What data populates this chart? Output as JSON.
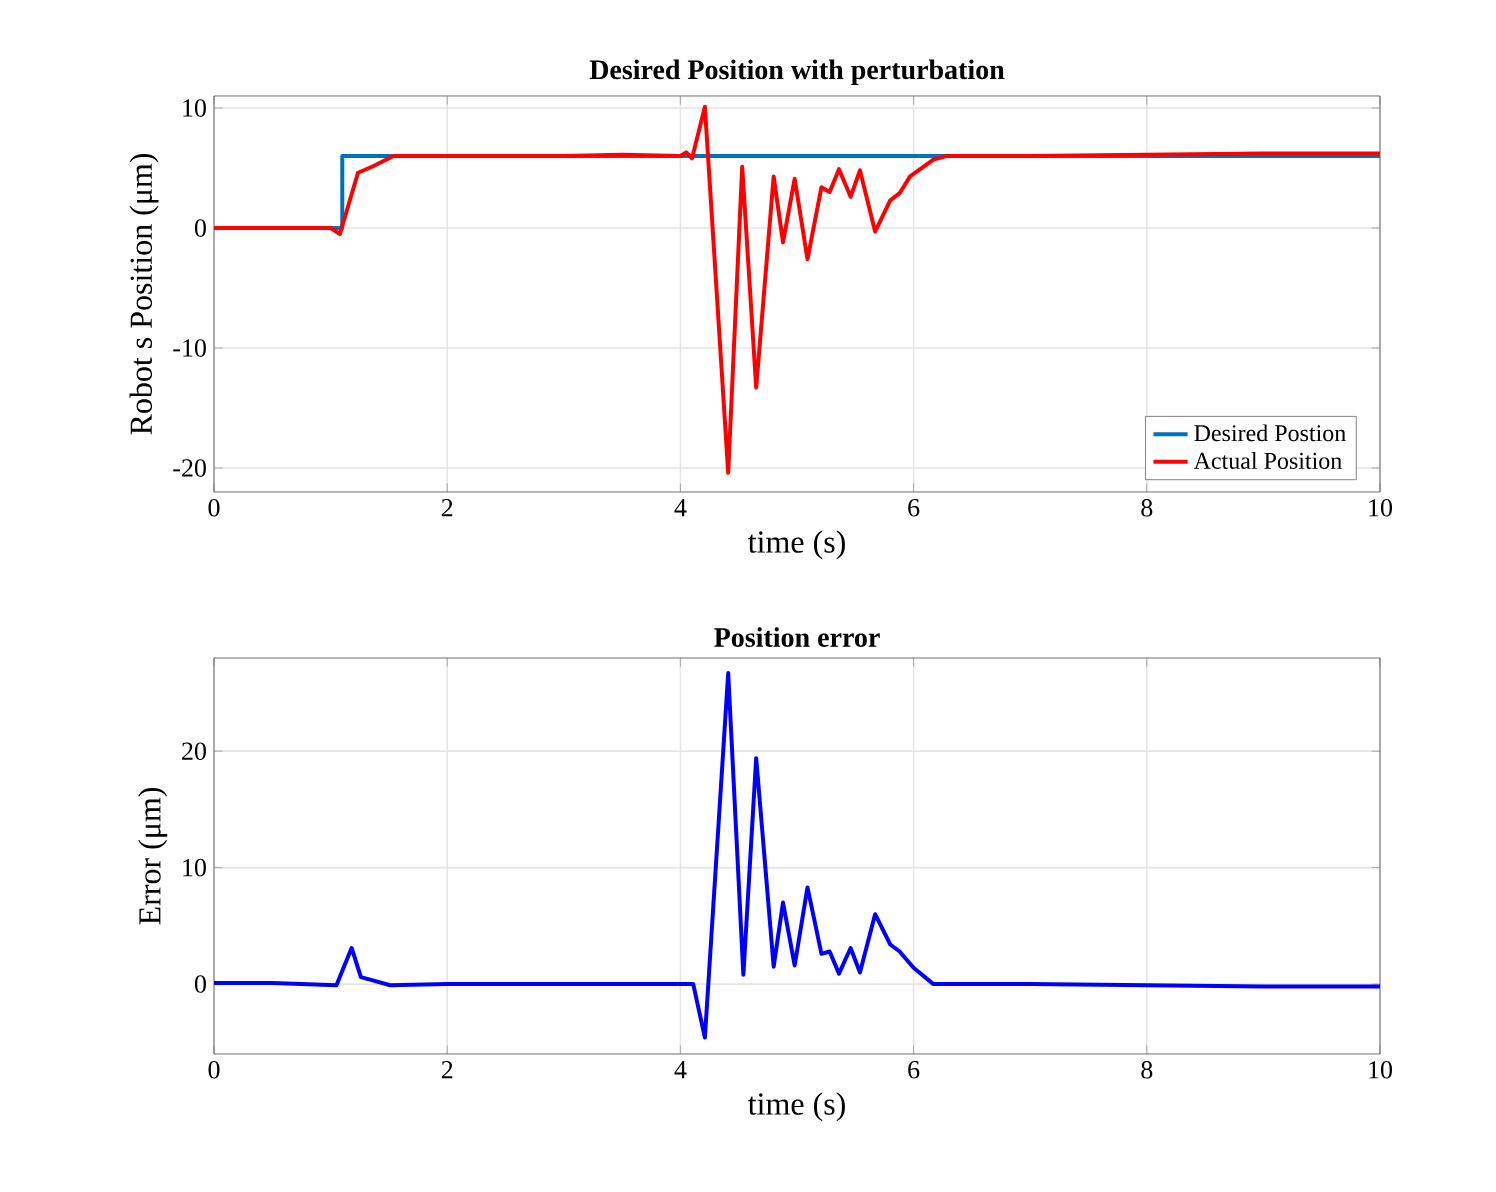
{
  "chart_data": [
    {
      "type": "line",
      "title": "Desired Position with perturbation",
      "xlabel": "time (s)",
      "ylabel": "Robot s Position (μm)",
      "xlim": [
        0,
        10
      ],
      "ylim": [
        -22,
        11
      ],
      "xticks": [
        0,
        2,
        4,
        6,
        8,
        10
      ],
      "yticks": [
        -20,
        -10,
        0,
        10
      ],
      "grid": true,
      "legend": "bottom right",
      "series": [
        {
          "name": "Desired Postion",
          "color": "#0072bd",
          "x": [
            0,
            1.1,
            1.1,
            10
          ],
          "values": [
            0,
            0,
            6,
            6
          ]
        },
        {
          "name": "Actual Position",
          "color": "#ff0000",
          "x": [
            0,
            0.5,
            1.0,
            1.08,
            1.235,
            1.355,
            1.54,
            2.0,
            3.0,
            3.5,
            4.0,
            4.05,
            4.1,
            4.21,
            4.41,
            4.53,
            4.65,
            4.8,
            4.88,
            4.98,
            5.09,
            5.21,
            5.28,
            5.36,
            5.46,
            5.54,
            5.67,
            5.8,
            5.88,
            5.97,
            6.17,
            6.28,
            7.0,
            8.0,
            9.0,
            10.0
          ],
          "values": [
            0,
            0,
            0,
            -0.5,
            4.6,
            5.1,
            6.0,
            6.0,
            6.0,
            6.1,
            6.0,
            6.3,
            5.8,
            10.1,
            -20.4,
            5.1,
            -13.3,
            4.3,
            -1.2,
            4.1,
            -2.6,
            3.4,
            3.0,
            4.9,
            2.6,
            4.8,
            -0.3,
            2.3,
            2.9,
            4.3,
            5.7,
            6.0,
            6.0,
            6.1,
            6.2,
            6.2
          ]
        }
      ]
    },
    {
      "type": "line",
      "title": "Position error",
      "xlabel": "time (s)",
      "ylabel": "Error (μm)",
      "xlim": [
        0,
        10
      ],
      "ylim": [
        -6,
        28
      ],
      "xticks": [
        0,
        2,
        4,
        6,
        8,
        10
      ],
      "yticks": [
        0,
        10,
        20
      ],
      "grid": true,
      "series": [
        {
          "color": "#0000ff",
          "x": [
            0,
            0.5,
            1.05,
            1.18,
            1.26,
            1.37,
            1.51,
            2.0,
            3.0,
            4.0,
            4.11,
            4.21,
            4.41,
            4.54,
            4.65,
            4.8,
            4.88,
            4.98,
            5.09,
            5.21,
            5.28,
            5.36,
            5.46,
            5.54,
            5.67,
            5.8,
            5.88,
            6.0,
            6.17,
            7.0,
            8.0,
            9.0,
            10.0
          ],
          "values": [
            0.1,
            0.1,
            -0.1,
            3.1,
            0.6,
            0.3,
            -0.1,
            0.0,
            0.0,
            0.0,
            0.0,
            -4.6,
            26.7,
            0.8,
            19.4,
            1.5,
            7.0,
            1.6,
            8.3,
            2.6,
            2.8,
            0.9,
            3.1,
            1.0,
            6.0,
            3.4,
            2.8,
            1.4,
            0.0,
            0.0,
            -0.1,
            -0.2,
            -0.2
          ]
        }
      ]
    }
  ]
}
